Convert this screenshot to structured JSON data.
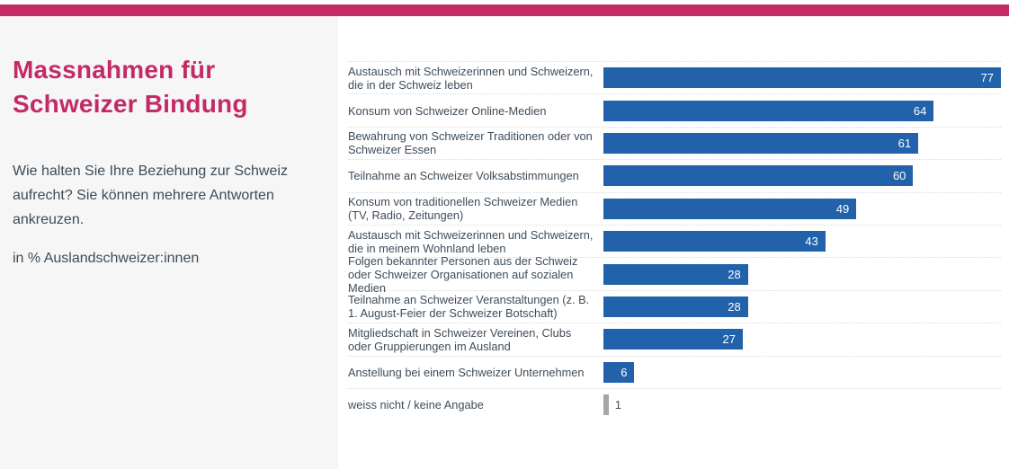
{
  "header": {
    "top_bar_color": "#c42a63"
  },
  "sidebar": {
    "title": "Massnahmen für Schweizer Bindung",
    "description": "Wie halten Sie Ihre Beziehung zur Schweiz aufrecht? Sie können mehrere Antworten ankreuzen.",
    "unit_note": "in % Auslandschweizer:innen",
    "title_color": "#c42a63",
    "background": "#f6f6f6"
  },
  "chart_data": {
    "type": "bar",
    "orientation": "horizontal",
    "title": "Massnahmen für Schweizer Bindung",
    "subtitle": "Wie halten Sie Ihre Beziehung zur Schweiz aufrecht? Sie können mehrere Antworten ankreuzen.",
    "unit": "in % Auslandschweizer:innen",
    "xlim": [
      0,
      77
    ],
    "grid": false,
    "value_label_position": "inside-end",
    "row_separator": "dotted",
    "categories": [
      "Austausch mit Schweizerinnen und Schweizern, die in der Schweiz leben",
      "Konsum von Schweizer Online-Medien",
      "Bewahrung von Schweizer Traditionen oder von Schweizer Essen",
      "Teilnahme an Schweizer Volksabstimmungen",
      "Konsum von traditionellen Schweizer Medien (TV, Radio, Zeitungen)",
      "Austausch mit Schweizerinnen und Schweizern, die in meinem Wohnland leben",
      "Folgen bekannter Personen aus der Schweiz oder Schweizer Organisationen auf sozialen Medien",
      "Teilnahme an Schweizer Veranstaltungen (z. B. 1. August-Feier der Schweizer Botschaft)",
      "Mitgliedschaft in Schweizer Vereinen, Clubs oder Gruppierungen im Ausland",
      "Anstellung bei einem Schweizer Unternehmen",
      "weiss nicht / keine Angabe"
    ],
    "values": [
      77,
      64,
      61,
      60,
      49,
      43,
      28,
      28,
      27,
      6,
      1
    ],
    "bar_colors": [
      "#2162ab",
      "#2162ab",
      "#2162ab",
      "#2162ab",
      "#2162ab",
      "#2162ab",
      "#2162ab",
      "#2162ab",
      "#2162ab",
      "#2162ab",
      "#a6a6a6"
    ]
  }
}
